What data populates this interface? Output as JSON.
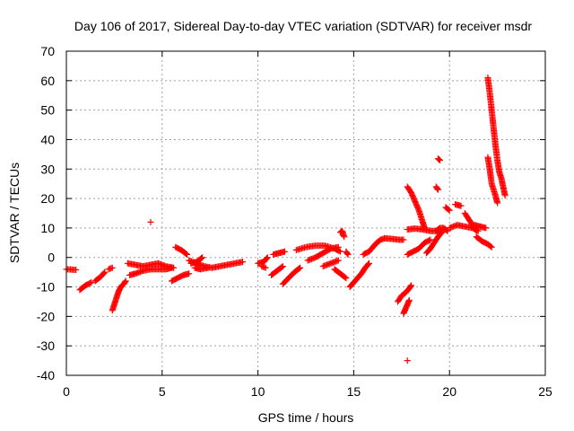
{
  "chart_data": {
    "type": "scatter",
    "title": "Day 106 of 2017, Sidereal Day-to-day VTEC variation (SDTVAR) for receiver msdr",
    "xlabel": "GPS time / hours",
    "ylabel": "SDTVAR / TECUs",
    "xlim": [
      0,
      25
    ],
    "ylim": [
      -40,
      70
    ],
    "xticks": [
      "0",
      "5",
      "10",
      "15",
      "20",
      "25"
    ],
    "yticks": [
      "-40",
      "-30",
      "-20",
      "-10",
      "0",
      "10",
      "20",
      "30",
      "40",
      "50",
      "60",
      "70"
    ],
    "grid": true,
    "marker": "+",
    "color": "#ff0000",
    "segments": [
      [
        [
          0.0,
          -4
        ],
        [
          0.5,
          -4.2
        ]
      ],
      [
        [
          0.7,
          -11
        ],
        [
          1.0,
          -9.5
        ],
        [
          1.3,
          -8.5
        ]
      ],
      [
        [
          1.5,
          -8
        ],
        [
          1.8,
          -6.5
        ],
        [
          2.0,
          -5
        ]
      ],
      [
        [
          2.2,
          -4
        ],
        [
          2.4,
          -3.5
        ]
      ],
      [
        [
          2.4,
          -18
        ],
        [
          2.5,
          -16
        ],
        [
          2.6,
          -14
        ],
        [
          2.7,
          -12
        ],
        [
          2.8,
          -10.5
        ],
        [
          2.9,
          -9.5
        ],
        [
          3.0,
          -9
        ],
        [
          3.1,
          -8
        ]
      ],
      [
        [
          3.2,
          -2
        ],
        [
          3.6,
          -2.5
        ],
        [
          4.0,
          -3
        ],
        [
          4.4,
          -2.5
        ],
        [
          4.8,
          -2
        ],
        [
          5.2,
          -3
        ],
        [
          5.6,
          -3.5
        ]
      ],
      [
        [
          3.3,
          -6
        ],
        [
          3.6,
          -5.5
        ],
        [
          4.0,
          -4.5
        ],
        [
          4.4,
          -4
        ],
        [
          4.8,
          -4
        ],
        [
          5.2,
          -4
        ],
        [
          5.5,
          -3.5
        ]
      ],
      [
        [
          4.4,
          12
        ]
      ],
      [
        [
          5.5,
          -8
        ],
        [
          5.8,
          -7
        ],
        [
          6.1,
          -6
        ],
        [
          6.4,
          -5.5
        ]
      ],
      [
        [
          5.7,
          3.5
        ],
        [
          6.0,
          2.5
        ],
        [
          6.3,
          1
        ]
      ],
      [
        [
          6.4,
          -1
        ],
        [
          6.8,
          -2
        ],
        [
          7.2,
          -3
        ],
        [
          7.6,
          -3.5
        ],
        [
          8.0,
          -3
        ],
        [
          8.4,
          -2.5
        ],
        [
          8.8,
          -2
        ],
        [
          9.2,
          -1.5
        ]
      ],
      [
        [
          6.5,
          -2
        ],
        [
          6.8,
          -1.5
        ],
        [
          7.1,
          0
        ]
      ],
      [
        [
          6.7,
          -3.5
        ],
        [
          7.0,
          -4
        ],
        [
          7.4,
          -3.5
        ]
      ],
      [
        [
          10.0,
          -2
        ],
        [
          10.3,
          -1.5
        ],
        [
          10.5,
          0
        ]
      ],
      [
        [
          10.2,
          -3
        ],
        [
          10.4,
          -3.5
        ]
      ],
      [
        [
          10.7,
          -6
        ],
        [
          11.0,
          -4.5
        ],
        [
          11.3,
          -3
        ]
      ],
      [
        [
          10.8,
          1
        ],
        [
          11.1,
          1.5
        ],
        [
          11.4,
          2
        ]
      ],
      [
        [
          11.3,
          -9
        ],
        [
          11.6,
          -7
        ],
        [
          11.9,
          -5
        ],
        [
          12.2,
          -3.5
        ]
      ],
      [
        [
          12.0,
          2.5
        ],
        [
          12.5,
          3.5
        ],
        [
          13.0,
          4
        ],
        [
          13.5,
          4
        ],
        [
          14.0,
          3
        ],
        [
          14.3,
          2
        ]
      ],
      [
        [
          12.6,
          -1
        ],
        [
          13.0,
          0
        ],
        [
          13.4,
          1.5
        ],
        [
          13.8,
          3
        ],
        [
          14.2,
          3.5
        ]
      ],
      [
        [
          13.4,
          -3
        ],
        [
          13.8,
          -2
        ],
        [
          14.2,
          -1
        ]
      ],
      [
        [
          14.0,
          -4
        ],
        [
          14.2,
          -5
        ],
        [
          14.4,
          -6
        ],
        [
          14.6,
          -7
        ]
      ],
      [
        [
          14.3,
          8.5
        ],
        [
          14.4,
          9
        ],
        [
          14.5,
          7
        ]
      ],
      [
        [
          14.6,
          2
        ],
        [
          14.7,
          1
        ]
      ],
      [
        [
          14.8,
          -10
        ],
        [
          15.0,
          -8.5
        ],
        [
          15.2,
          -7
        ],
        [
          15.4,
          -5.5
        ],
        [
          15.6,
          -3.5
        ],
        [
          15.8,
          -2
        ]
      ],
      [
        [
          15.5,
          1
        ],
        [
          15.8,
          2
        ],
        [
          16.0,
          3.5
        ],
        [
          16.2,
          5
        ],
        [
          16.4,
          6
        ],
        [
          16.6,
          6.5
        ]
      ],
      [
        [
          16.6,
          6.5
        ],
        [
          17.0,
          6.3
        ],
        [
          17.4,
          6
        ],
        [
          17.6,
          6
        ]
      ],
      [
        [
          17.3,
          -15
        ],
        [
          17.5,
          -13
        ],
        [
          17.7,
          -12
        ],
        [
          17.9,
          -10.5
        ],
        [
          18.0,
          -9.5
        ]
      ],
      [
        [
          17.6,
          -19
        ],
        [
          17.7,
          -17.5
        ],
        [
          17.8,
          -16
        ],
        [
          17.9,
          -14.5
        ]
      ],
      [
        [
          17.8,
          -35
        ]
      ],
      [
        [
          17.8,
          1
        ],
        [
          18.1,
          2
        ],
        [
          18.4,
          3
        ],
        [
          18.7,
          5
        ],
        [
          19.0,
          6
        ]
      ],
      [
        [
          17.8,
          9.5
        ],
        [
          18.2,
          9.8
        ],
        [
          18.6,
          9.5
        ],
        [
          19.0,
          9
        ],
        [
          19.4,
          9
        ],
        [
          19.8,
          9.5
        ]
      ],
      [
        [
          17.8,
          24
        ],
        [
          18.0,
          22
        ],
        [
          18.2,
          19
        ],
        [
          18.4,
          16
        ],
        [
          18.6,
          12
        ],
        [
          18.7,
          10
        ]
      ],
      [
        [
          18.8,
          1.5
        ],
        [
          19.0,
          3
        ],
        [
          19.2,
          5
        ],
        [
          19.4,
          7
        ],
        [
          19.6,
          8.5
        ]
      ],
      [
        [
          19.3,
          24
        ],
        [
          19.4,
          23
        ]
      ],
      [
        [
          19.4,
          33.5
        ],
        [
          19.5,
          33
        ]
      ],
      [
        [
          19.3,
          9
        ],
        [
          19.5,
          10
        ],
        [
          19.7,
          10
        ],
        [
          19.9,
          9
        ]
      ],
      [
        [
          19.8,
          17
        ],
        [
          20.0,
          16
        ]
      ],
      [
        [
          20.0,
          10
        ],
        [
          20.4,
          11
        ],
        [
          20.8,
          10.5
        ],
        [
          21.2,
          10
        ],
        [
          21.5,
          9
        ]
      ],
      [
        [
          20.3,
          18
        ],
        [
          20.6,
          17.5
        ]
      ],
      [
        [
          20.8,
          15
        ],
        [
          21.0,
          13
        ],
        [
          21.2,
          11
        ],
        [
          21.4,
          9
        ]
      ],
      [
        [
          21.4,
          7
        ],
        [
          21.7,
          5.5
        ],
        [
          22.0,
          4.5
        ],
        [
          22.2,
          3.5
        ]
      ],
      [
        [
          21.3,
          11
        ],
        [
          21.6,
          10.5
        ],
        [
          21.9,
          10
        ]
      ],
      [
        [
          22.0,
          61
        ],
        [
          22.1,
          56
        ],
        [
          22.2,
          50
        ],
        [
          22.3,
          44
        ],
        [
          22.4,
          38
        ],
        [
          22.5,
          33
        ],
        [
          22.6,
          29
        ],
        [
          22.7,
          27
        ],
        [
          22.8,
          24
        ],
        [
          22.9,
          21
        ]
      ],
      [
        [
          22.0,
          34
        ],
        [
          22.1,
          30
        ],
        [
          22.2,
          25
        ],
        [
          22.4,
          21
        ],
        [
          22.5,
          18.5
        ]
      ]
    ]
  }
}
